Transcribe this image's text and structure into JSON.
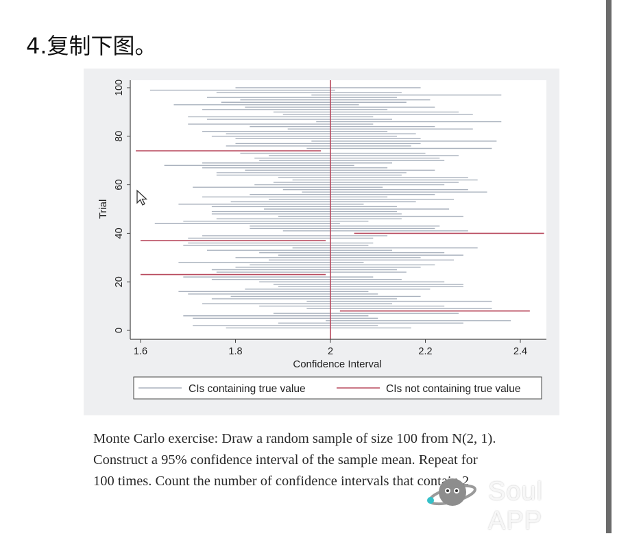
{
  "heading": "4.复制下图。",
  "chart_data": {
    "type": "line",
    "subtype": "interval-range",
    "xlabel": "Confidence Interval",
    "ylabel": "Trial",
    "xlim": [
      1.56,
      2.46
    ],
    "ylim": [
      -3.5,
      103
    ],
    "xticks": [
      1.6,
      1.8,
      2,
      2.2,
      2.4
    ],
    "xtick_labels": [
      "1.6",
      "1.8",
      "2",
      "2.2",
      "2.4"
    ],
    "yticks": [
      0,
      20,
      40,
      60,
      80,
      100
    ],
    "ytick_labels": [
      "0",
      "20",
      "40",
      "60",
      "80",
      "100"
    ],
    "true_value": 2,
    "grid": false,
    "legend_position": "bottom",
    "legend": [
      "CIs containing true value",
      "CIs not containing true value"
    ],
    "colors": {
      "containing": "#aab2be",
      "not_containing": "#b84a5e",
      "reference_line": "#b84a5e"
    },
    "trials_start": 1,
    "intervals": [
      [
        1.78,
        2.17
      ],
      [
        1.71,
        2.1
      ],
      [
        1.89,
        2.28
      ],
      [
        1.99,
        2.38
      ],
      [
        1.71,
        2.1
      ],
      [
        1.69,
        2.08
      ],
      [
        1.88,
        2.27
      ],
      [
        2.02,
        2.42
      ],
      [
        1.95,
        2.34
      ],
      [
        1.85,
        2.24
      ],
      [
        1.73,
        2.13
      ],
      [
        1.95,
        2.34
      ],
      [
        1.75,
        2.14
      ],
      [
        1.79,
        2.19
      ],
      [
        1.7,
        2.1
      ],
      [
        1.68,
        2.08
      ],
      [
        1.82,
        2.21
      ],
      [
        1.89,
        2.28
      ],
      [
        1.88,
        2.28
      ],
      [
        1.85,
        2.24
      ],
      [
        1.75,
        2.15
      ],
      [
        1.69,
        2.09
      ],
      [
        1.6,
        1.99
      ],
      [
        1.76,
        2.16
      ],
      [
        1.75,
        2.14
      ],
      [
        1.8,
        2.19
      ],
      [
        1.83,
        2.22
      ],
      [
        1.68,
        2.07
      ],
      [
        1.87,
        2.26
      ],
      [
        1.8,
        2.19
      ],
      [
        1.89,
        2.28
      ],
      [
        1.85,
        2.24
      ],
      [
        1.74,
        2.13
      ],
      [
        1.92,
        2.31
      ],
      [
        1.69,
        2.08
      ],
      [
        1.7,
        2.09
      ],
      [
        1.6,
        1.99
      ],
      [
        1.7,
        2.09
      ],
      [
        1.73,
        2.12
      ],
      [
        2.05,
        2.45
      ],
      [
        1.9,
        2.29
      ],
      [
        1.83,
        2.22
      ],
      [
        1.83,
        2.23
      ],
      [
        1.63,
        2.02
      ],
      [
        1.69,
        2.08
      ],
      [
        1.76,
        2.15
      ],
      [
        1.89,
        2.28
      ],
      [
        1.75,
        2.15
      ],
      [
        1.75,
        2.14
      ],
      [
        1.86,
        2.25
      ],
      [
        1.75,
        2.14
      ],
      [
        1.68,
        2.07
      ],
      [
        1.79,
        2.18
      ],
      [
        1.87,
        2.26
      ],
      [
        1.73,
        2.12
      ],
      [
        1.83,
        2.22
      ],
      [
        1.94,
        2.33
      ],
      [
        1.9,
        2.29
      ],
      [
        1.71,
        2.11
      ],
      [
        1.84,
        2.24
      ],
      [
        1.88,
        2.27
      ],
      [
        1.92,
        2.31
      ],
      [
        1.89,
        2.29
      ],
      [
        1.76,
        2.15
      ],
      [
        1.76,
        2.16
      ],
      [
        1.82,
        2.22
      ],
      [
        1.73,
        2.12
      ],
      [
        1.65,
        2.05
      ],
      [
        1.73,
        2.13
      ],
      [
        1.85,
        2.24
      ],
      [
        1.84,
        2.23
      ],
      [
        1.87,
        2.27
      ],
      [
        1.81,
        2.2
      ],
      [
        1.59,
        1.98
      ],
      [
        1.95,
        2.34
      ],
      [
        1.78,
        2.17
      ],
      [
        1.8,
        2.19
      ],
      [
        1.96,
        2.35
      ],
      [
        1.8,
        2.19
      ],
      [
        1.75,
        2.14
      ],
      [
        1.78,
        2.18
      ],
      [
        1.73,
        2.12
      ],
      [
        1.91,
        2.3
      ],
      [
        1.83,
        2.22
      ],
      [
        1.7,
        2.09
      ],
      [
        1.97,
        2.36
      ],
      [
        1.74,
        2.13
      ],
      [
        1.7,
        2.09
      ],
      [
        1.9,
        2.3
      ],
      [
        1.88,
        2.27
      ],
      [
        1.73,
        2.12
      ],
      [
        1.82,
        2.22
      ],
      [
        1.67,
        2.06
      ],
      [
        1.77,
        2.16
      ],
      [
        1.81,
        2.21
      ],
      [
        1.74,
        2.14
      ],
      [
        1.96,
        2.36
      ],
      [
        1.76,
        2.15
      ],
      [
        1.62,
        2.01
      ],
      [
        1.8,
        2.19
      ]
    ]
  },
  "caption": {
    "line1": "Monte Carlo exercise: Draw a random sample of size 100 from N(2, 1).",
    "line2": "Construct a 95% confidence interval of the sample mean. Repeat for",
    "line3": "100 times. Count the number of confidence intervals that contain 2"
  },
  "watermark": "Soul APP"
}
